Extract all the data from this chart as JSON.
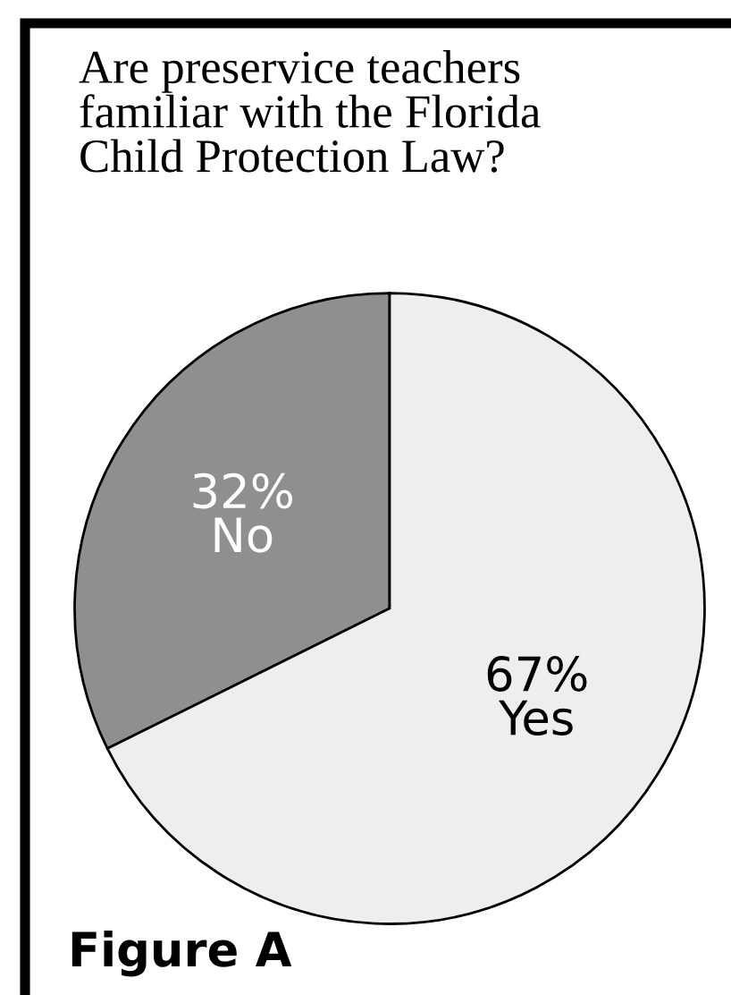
{
  "chart_data": {
    "type": "pie",
    "title": "Are preservice teachers\nfamiliar with the Florida\nChild Protection Law?",
    "categories": [
      "No",
      "Yes"
    ],
    "values": [
      32,
      67
    ],
    "value_labels": [
      "32%",
      "67%"
    ],
    "colors": [
      "#8f8f8f",
      "#eeeeee"
    ],
    "annotations": [
      "Figure A"
    ]
  }
}
